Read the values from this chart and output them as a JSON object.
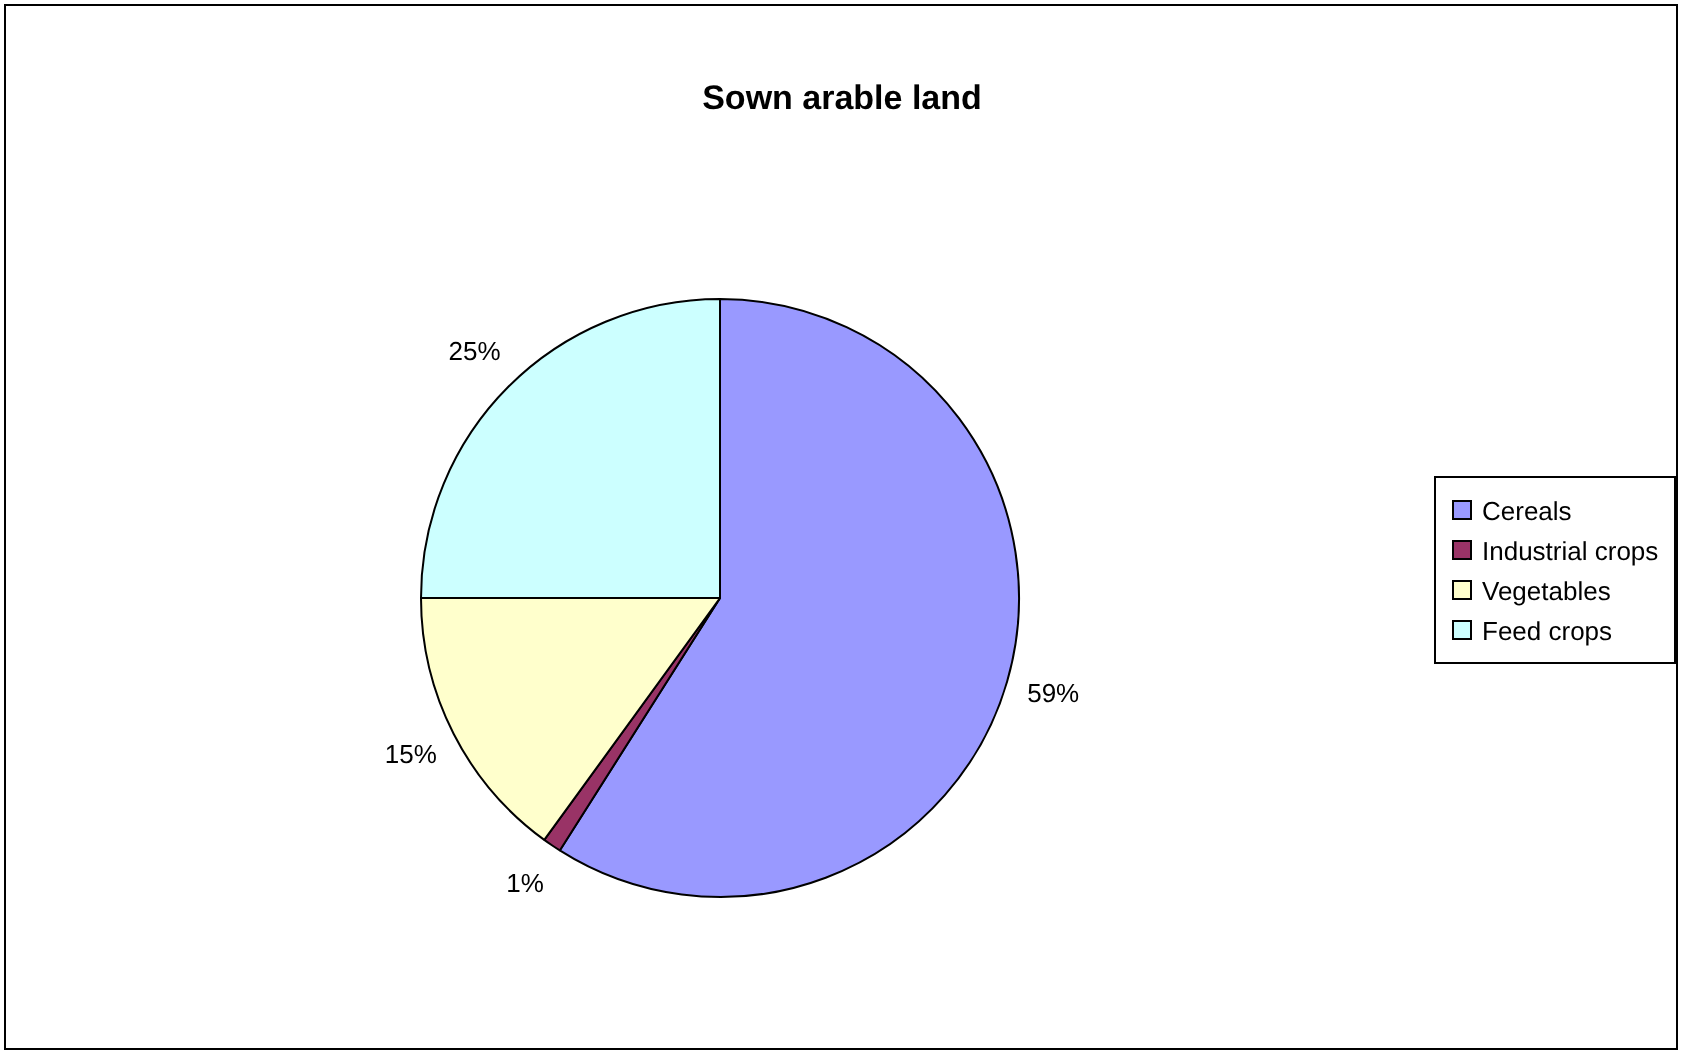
{
  "chart_data": {
    "type": "pie",
    "title": "Sown arable land",
    "categories": [
      "Cereals",
      "Industrial crops",
      "Vegetables",
      "Feed crops"
    ],
    "values": [
      59,
      1,
      15,
      25
    ],
    "colors": [
      "#9999ff",
      "#993366",
      "#ffffcc",
      "#ccffff"
    ],
    "value_labels": [
      "59%",
      "1%",
      "15%",
      "25%"
    ],
    "legend": "right"
  }
}
